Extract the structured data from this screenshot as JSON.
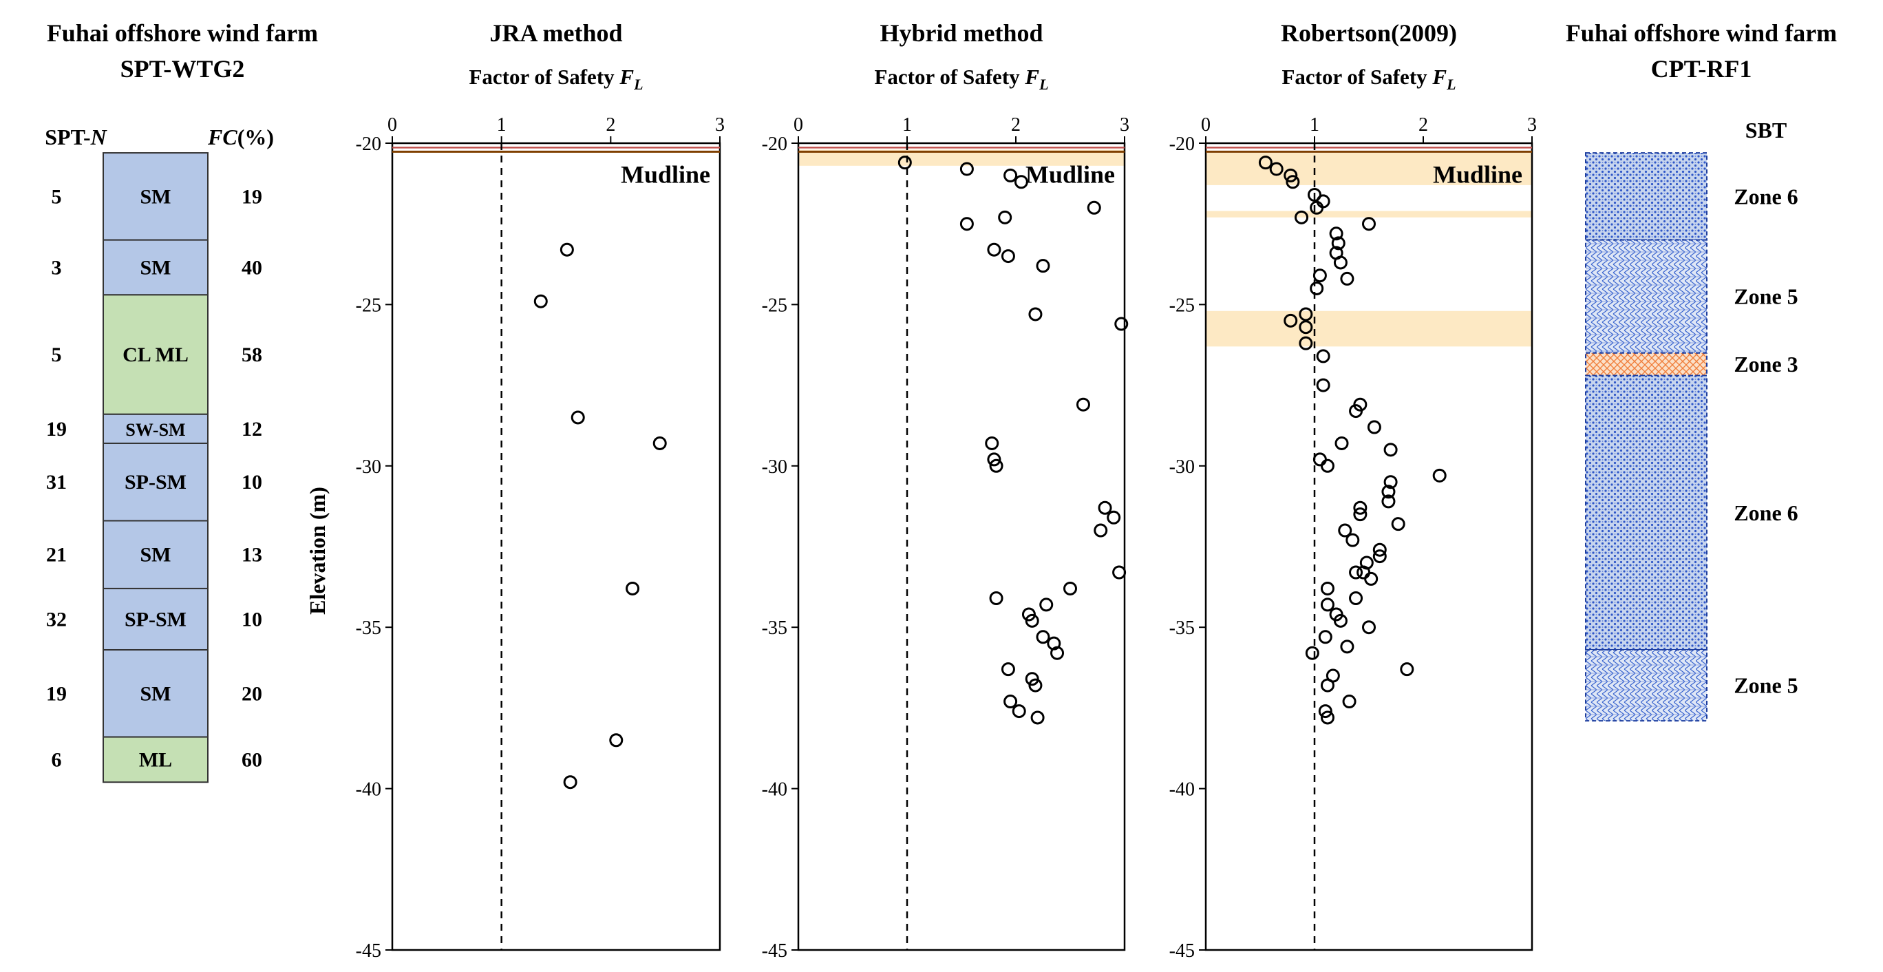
{
  "chart_data": [
    {
      "type": "table",
      "title": [
        "Fuhai offshore wind farm",
        "SPT-WTG2"
      ],
      "col_n_prefix": "SPT-",
      "col_n_italic": "N",
      "col_fc_italic": "FC",
      "col_fc_suffix": "(%)",
      "layers": [
        {
          "top": -20.3,
          "bottom": -23.0,
          "label": "SM",
          "n": "5",
          "fc": "19",
          "color": "#b4c7e7"
        },
        {
          "top": -23.0,
          "bottom": -24.7,
          "label": "SM",
          "n": "3",
          "fc": "40",
          "color": "#b4c7e7"
        },
        {
          "top": -24.7,
          "bottom": -28.4,
          "label": "CL ML",
          "n": "5",
          "fc": "58",
          "color": "#c5e0b4"
        },
        {
          "top": -28.4,
          "bottom": -29.3,
          "label": "SW-SM",
          "n": "19",
          "fc": "12",
          "color": "#b4c7e7"
        },
        {
          "top": -29.3,
          "bottom": -31.7,
          "label": "SP-SM",
          "n": "31",
          "fc": "10",
          "color": "#b4c7e7"
        },
        {
          "top": -31.7,
          "bottom": -33.8,
          "label": "SM",
          "n": "21",
          "fc": "13",
          "color": "#b4c7e7"
        },
        {
          "top": -33.8,
          "bottom": -35.7,
          "label": "SP-SM",
          "n": "32",
          "fc": "10",
          "color": "#b4c7e7"
        },
        {
          "top": -35.7,
          "bottom": -38.4,
          "label": "SM",
          "n": "19",
          "fc": "20",
          "color": "#b4c7e7"
        },
        {
          "top": -38.4,
          "bottom": -39.8,
          "label": "ML",
          "n": "6",
          "fc": "60",
          "color": "#c5e0b4"
        }
      ]
    },
    {
      "type": "scatter",
      "title": "JRA method",
      "xlabel": "Factor of Safety",
      "xlabel_sub": "L",
      "ylabel": "Elevation (m)",
      "xlim": [
        0,
        3
      ],
      "ylim": [
        -45,
        -20
      ],
      "xticks": [
        0,
        1,
        2,
        3
      ],
      "yticks": [
        -20,
        -25,
        -30,
        -35,
        -40,
        -45
      ],
      "annotation": "Mudline",
      "mudline": -20.2,
      "refline": 1,
      "highlights": [],
      "points": [
        [
          1.6,
          -23.3
        ],
        [
          1.36,
          -24.9
        ],
        [
          1.7,
          -28.5
        ],
        [
          2.45,
          -29.3
        ],
        [
          2.2,
          -33.8
        ],
        [
          2.05,
          -38.5
        ],
        [
          1.63,
          -39.8
        ]
      ]
    },
    {
      "type": "scatter",
      "title": "Hybrid method",
      "xlabel": "Factor of Safety",
      "xlabel_sub": "L",
      "xlim": [
        0,
        3
      ],
      "ylim": [
        -45,
        -20
      ],
      "xticks": [
        0,
        1,
        2,
        3
      ],
      "yticks": [
        -20,
        -25,
        -30,
        -35,
        -40,
        -45
      ],
      "annotation": "Mudline",
      "mudline": -20.2,
      "refline": 1,
      "highlights": [
        [
          -20.2,
          -20.7
        ]
      ],
      "points": [
        [
          0.98,
          -20.6
        ],
        [
          1.55,
          -20.8
        ],
        [
          1.95,
          -21.0
        ],
        [
          2.05,
          -21.2
        ],
        [
          2.72,
          -22.0
        ],
        [
          1.9,
          -22.3
        ],
        [
          1.55,
          -22.5
        ],
        [
          1.8,
          -23.3
        ],
        [
          1.93,
          -23.5
        ],
        [
          2.25,
          -23.8
        ],
        [
          2.18,
          -25.3
        ],
        [
          2.97,
          -25.6
        ],
        [
          2.62,
          -28.1
        ],
        [
          1.78,
          -29.3
        ],
        [
          1.8,
          -29.8
        ],
        [
          1.82,
          -30.0
        ],
        [
          2.82,
          -31.3
        ],
        [
          2.9,
          -31.6
        ],
        [
          2.78,
          -32.0
        ],
        [
          2.95,
          -33.3
        ],
        [
          2.5,
          -33.8
        ],
        [
          2.28,
          -34.3
        ],
        [
          1.82,
          -34.1
        ],
        [
          2.12,
          -34.6
        ],
        [
          2.15,
          -34.8
        ],
        [
          2.25,
          -35.3
        ],
        [
          2.35,
          -35.5
        ],
        [
          2.38,
          -35.8
        ],
        [
          1.93,
          -36.3
        ],
        [
          2.15,
          -36.6
        ],
        [
          2.18,
          -36.8
        ],
        [
          1.95,
          -37.3
        ],
        [
          2.03,
          -37.6
        ],
        [
          2.2,
          -37.8
        ]
      ]
    },
    {
      "type": "scatter",
      "title": "Robertson(2009)",
      "xlabel": "Factor of Safety",
      "xlabel_sub": "L",
      "xlim": [
        0,
        3
      ],
      "ylim": [
        -45,
        -20
      ],
      "xticks": [
        0,
        1,
        2,
        3
      ],
      "yticks": [
        -20,
        -25,
        -30,
        -35,
        -40,
        -45
      ],
      "annotation": "Mudline",
      "mudline": -20.2,
      "refline": 1,
      "highlights": [
        [
          -20.3,
          -21.3
        ],
        [
          -22.1,
          -22.3
        ],
        [
          -25.2,
          -26.3
        ]
      ],
      "points": [
        [
          0.55,
          -20.6
        ],
        [
          0.65,
          -20.8
        ],
        [
          0.78,
          -21.0
        ],
        [
          0.8,
          -21.2
        ],
        [
          1.0,
          -21.6
        ],
        [
          1.08,
          -21.8
        ],
        [
          1.02,
          -22.0
        ],
        [
          0.88,
          -22.3
        ],
        [
          1.5,
          -22.5
        ],
        [
          1.2,
          -22.8
        ],
        [
          1.22,
          -23.1
        ],
        [
          1.2,
          -23.4
        ],
        [
          1.24,
          -23.7
        ],
        [
          1.3,
          -24.2
        ],
        [
          1.05,
          -24.1
        ],
        [
          1.02,
          -24.5
        ],
        [
          0.92,
          -25.3
        ],
        [
          0.78,
          -25.5
        ],
        [
          0.92,
          -25.7
        ],
        [
          0.92,
          -26.2
        ],
        [
          1.08,
          -26.6
        ],
        [
          1.08,
          -27.5
        ],
        [
          1.42,
          -28.1
        ],
        [
          1.38,
          -28.3
        ],
        [
          1.55,
          -28.8
        ],
        [
          1.25,
          -29.3
        ],
        [
          1.7,
          -29.5
        ],
        [
          1.05,
          -29.8
        ],
        [
          1.12,
          -30.0
        ],
        [
          2.15,
          -30.3
        ],
        [
          1.7,
          -30.5
        ],
        [
          1.68,
          -30.8
        ],
        [
          1.68,
          -31.1
        ],
        [
          1.42,
          -31.3
        ],
        [
          1.42,
          -31.5
        ],
        [
          1.77,
          -31.8
        ],
        [
          1.28,
          -32.0
        ],
        [
          1.35,
          -32.3
        ],
        [
          1.6,
          -32.6
        ],
        [
          1.6,
          -32.8
        ],
        [
          1.48,
          -33.0
        ],
        [
          1.38,
          -33.3
        ],
        [
          1.52,
          -33.5
        ],
        [
          1.45,
          -33.3
        ],
        [
          1.12,
          -33.8
        ],
        [
          1.38,
          -34.1
        ],
        [
          1.12,
          -34.3
        ],
        [
          1.2,
          -34.6
        ],
        [
          1.24,
          -34.8
        ],
        [
          1.5,
          -35.0
        ],
        [
          1.1,
          -35.3
        ],
        [
          1.3,
          -35.6
        ],
        [
          0.98,
          -35.8
        ],
        [
          1.85,
          -36.3
        ],
        [
          1.17,
          -36.5
        ],
        [
          1.12,
          -36.8
        ],
        [
          1.32,
          -37.3
        ],
        [
          1.1,
          -37.6
        ],
        [
          1.12,
          -37.8
        ]
      ]
    },
    {
      "type": "table",
      "title": [
        "Fuhai offshore wind farm",
        "CPT-RF1"
      ],
      "col_label": "SBT",
      "zones": [
        {
          "top": -20.3,
          "bottom": -23.0,
          "label": "Zone 6",
          "pattern": "dense"
        },
        {
          "top": -23.0,
          "bottom": -26.5,
          "label": "Zone 5",
          "pattern": "sparse"
        },
        {
          "top": -26.5,
          "bottom": -27.2,
          "label": "Zone 3",
          "pattern": "orange"
        },
        {
          "top": -27.2,
          "bottom": -35.7,
          "label": "Zone 6",
          "pattern": "dense"
        },
        {
          "top": -35.7,
          "bottom": -37.9,
          "label": "Zone 5",
          "pattern": "sparse"
        }
      ]
    }
  ]
}
